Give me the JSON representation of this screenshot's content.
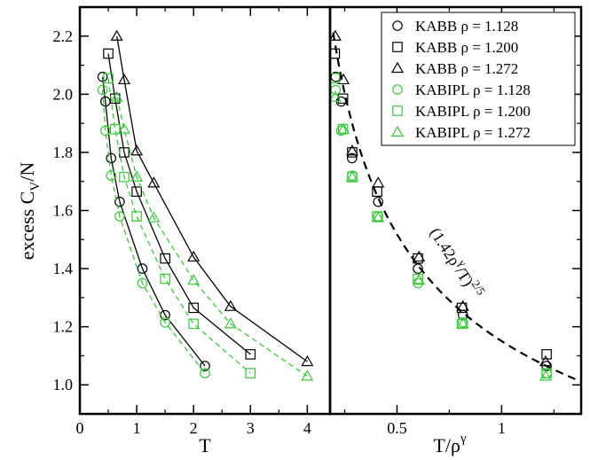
{
  "chart_data": [
    {
      "type": "line",
      "xlabel": "T",
      "ylabel": "excess",
      "ylabel_symbol": "C",
      "ylabel_sub": "V",
      "ylabel_suffix": "/N",
      "xlim": [
        0,
        4.4
      ],
      "ylim": [
        0.9,
        2.3
      ],
      "xticks": [
        "0",
        "1",
        "2",
        "3",
        "4"
      ],
      "yticks": [
        "1.0",
        "1.2",
        "1.4",
        "1.6",
        "1.8",
        "2.0",
        "2.2"
      ],
      "series": [
        {
          "name": "KABB ρ = 1.128",
          "color": "#000000",
          "marker": "circle",
          "linestyle": "solid",
          "points": [
            [
              0.4,
              2.06
            ],
            [
              0.45,
              1.975
            ],
            [
              0.55,
              1.78
            ],
            [
              0.7,
              1.63
            ],
            [
              1.1,
              1.4
            ],
            [
              1.5,
              1.24
            ],
            [
              2.2,
              1.065
            ]
          ]
        },
        {
          "name": "KABB ρ = 1.200",
          "color": "#000000",
          "marker": "square",
          "linestyle": "solid",
          "points": [
            [
              0.5,
              2.14
            ],
            [
              0.62,
              1.985
            ],
            [
              0.78,
              1.8
            ],
            [
              1.0,
              1.665
            ],
            [
              1.5,
              1.435
            ],
            [
              2.0,
              1.265
            ],
            [
              3.0,
              1.105
            ]
          ]
        },
        {
          "name": "KABB ρ = 1.272",
          "color": "#000000",
          "marker": "triangle",
          "linestyle": "solid",
          "points": [
            [
              0.65,
              2.2
            ],
            [
              0.78,
              2.05
            ],
            [
              1.0,
              1.805
            ],
            [
              1.3,
              1.695
            ],
            [
              2.0,
              1.44
            ],
            [
              2.65,
              1.27
            ],
            [
              4.0,
              1.08
            ]
          ]
        },
        {
          "name": "KABIPL ρ = 1.128",
          "color": "#33cc33",
          "marker": "circle",
          "linestyle": "dashed",
          "points": [
            [
              0.4,
              2.015
            ],
            [
              0.45,
              1.875
            ],
            [
              0.55,
              1.72
            ],
            [
              0.7,
              1.58
            ],
            [
              1.1,
              1.35
            ],
            [
              1.5,
              1.215
            ],
            [
              2.2,
              1.04
            ]
          ]
        },
        {
          "name": "KABIPL ρ = 1.200",
          "color": "#33cc33",
          "marker": "square",
          "linestyle": "dashed",
          "points": [
            [
              0.5,
              2.055
            ],
            [
              0.62,
              1.88
            ],
            [
              0.78,
              1.715
            ],
            [
              1.0,
              1.58
            ],
            [
              1.5,
              1.365
            ],
            [
              2.0,
              1.21
            ],
            [
              3.0,
              1.04
            ]
          ]
        },
        {
          "name": "KABIPL ρ = 1.272",
          "color": "#33cc33",
          "marker": "triangle",
          "linestyle": "dashed",
          "points": [
            [
              0.65,
              1.99
            ],
            [
              0.78,
              1.88
            ],
            [
              1.0,
              1.715
            ],
            [
              1.3,
              1.575
            ],
            [
              2.0,
              1.36
            ],
            [
              2.65,
              1.21
            ],
            [
              4.0,
              1.03
            ]
          ]
        }
      ]
    },
    {
      "type": "scatter",
      "xlabel": "T/ρ",
      "xlabel_sup": "γ",
      "xlim": [
        0.18,
        1.38
      ],
      "ylim": [
        0.9,
        2.3
      ],
      "xticks": [
        "0.5",
        "1"
      ],
      "annotation": "(1.42ρ",
      "annotation_sup1": "γ",
      "annotation_mid": "/T)",
      "annotation_sup2": "2/5",
      "curve": {
        "formula": "(1.42 x^-1)^(2/5)",
        "x_range": [
          0.195,
          1.38
        ],
        "color": "#000000",
        "linestyle": "dashed"
      },
      "series": [
        {
          "name": "KABB ρ = 1.128",
          "color": "#000000",
          "marker": "circle",
          "points": [
            [
              0.207,
              2.06
            ],
            [
              0.233,
              1.975
            ],
            [
              0.285,
              1.78
            ],
            [
              0.41,
              1.63
            ],
            [
              0.6,
              1.4
            ],
            [
              0.815,
              1.24
            ],
            [
              1.215,
              1.065
            ]
          ]
        },
        {
          "name": "KABB ρ = 1.200",
          "color": "#000000",
          "marker": "square",
          "points": [
            [
              0.203,
              2.14
            ],
            [
              0.242,
              1.985
            ],
            [
              0.286,
              1.8
            ],
            [
              0.405,
              1.665
            ],
            [
              0.6,
              1.435
            ],
            [
              0.81,
              1.265
            ],
            [
              1.215,
              1.105
            ]
          ]
        },
        {
          "name": "KABB ρ = 1.272",
          "color": "#000000",
          "marker": "triangle",
          "points": [
            [
              0.205,
              2.2
            ],
            [
              0.244,
              2.05
            ],
            [
              0.286,
              1.805
            ],
            [
              0.41,
              1.695
            ],
            [
              0.605,
              1.44
            ],
            [
              0.815,
              1.27
            ],
            [
              1.21,
              1.08
            ]
          ]
        },
        {
          "name": "KABIPL ρ = 1.128",
          "color": "#33cc33",
          "marker": "circle",
          "points": [
            [
              0.207,
              2.015
            ],
            [
              0.233,
              1.875
            ],
            [
              0.285,
              1.72
            ],
            [
              0.41,
              1.58
            ],
            [
              0.6,
              1.35
            ],
            [
              0.815,
              1.215
            ],
            [
              1.215,
              1.04
            ]
          ]
        },
        {
          "name": "KABIPL ρ = 1.200",
          "color": "#33cc33",
          "marker": "square",
          "points": [
            [
              0.203,
              2.055
            ],
            [
              0.242,
              1.88
            ],
            [
              0.286,
              1.715
            ],
            [
              0.405,
              1.58
            ],
            [
              0.6,
              1.365
            ],
            [
              0.81,
              1.21
            ],
            [
              1.215,
              1.04
            ]
          ]
        },
        {
          "name": "KABIPL ρ = 1.272",
          "color": "#33cc33",
          "marker": "triangle",
          "points": [
            [
              0.205,
              1.99
            ],
            [
              0.244,
              1.88
            ],
            [
              0.286,
              1.715
            ],
            [
              0.41,
              1.575
            ],
            [
              0.605,
              1.36
            ],
            [
              0.815,
              1.21
            ],
            [
              1.21,
              1.03
            ]
          ]
        }
      ],
      "legend_position": "top-right"
    }
  ]
}
